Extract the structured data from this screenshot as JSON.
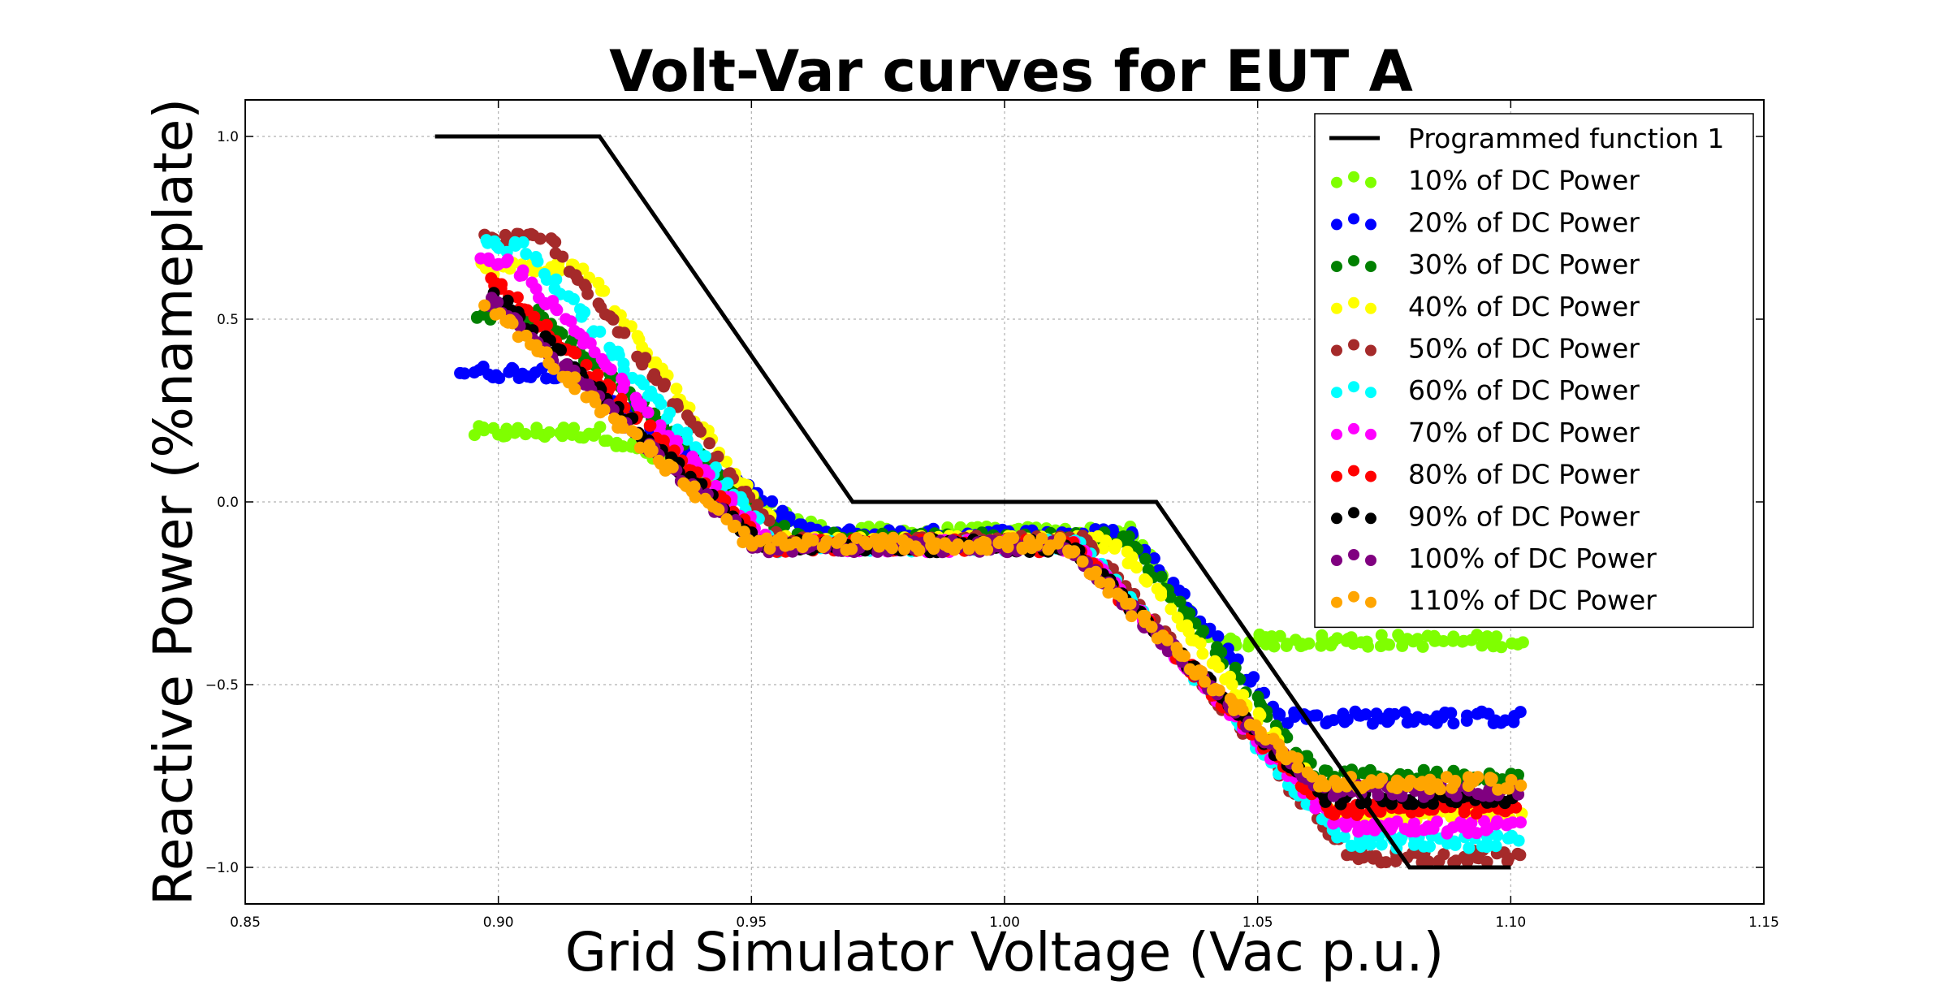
{
  "chart_data": {
    "type": "scatter",
    "title": "Volt-Var curves for EUT A",
    "xlabel": "Grid Simulator Voltage (Vac p.u.)",
    "ylabel": "Reactive Power (%nameplate)",
    "xlim": [
      0.85,
      1.15
    ],
    "ylim": [
      -1.1,
      1.1
    ],
    "xticks": [
      "0.85",
      "0.90",
      "0.95",
      "1.00",
      "1.05",
      "1.10",
      "1.15"
    ],
    "xtick_values": [
      0.85,
      0.9,
      0.95,
      1.0,
      1.05,
      1.1,
      1.15
    ],
    "yticks": [
      "1.0",
      "0.5",
      "0.0",
      "−0.5",
      "−1.0"
    ],
    "ytick_values": [
      1.0,
      0.5,
      0.0,
      -0.5,
      -1.0
    ],
    "grid": true,
    "legend_position": "top-right",
    "line_series": {
      "name": "Programmed function 1",
      "color": "#000000",
      "x": [
        0.8875,
        0.92,
        0.97,
        1.03,
        1.08,
        1.1
      ],
      "y": [
        1.0,
        1.0,
        0.0,
        0.0,
        -1.0,
        -1.0
      ]
    },
    "scatter_series": [
      {
        "name": "10% of DC Power",
        "color": "#7fff00",
        "q_cap": 0.19,
        "q_dead": -0.085,
        "q_abs": -0.38,
        "v_start": 0.895,
        "v_knee1": 0.92,
        "v_flat": 0.965,
        "v_knee2": 1.025,
        "v_floor": 1.04
      },
      {
        "name": "20% of DC Power",
        "color": "#0000ff",
        "q_cap": 0.355,
        "q_dead": -0.09,
        "q_abs": -0.59,
        "v_start": 0.893,
        "v_knee1": 0.915,
        "v_flat": 0.962,
        "v_knee2": 1.025,
        "v_floor": 1.055
      },
      {
        "name": "30% of DC Power",
        "color": "#008000",
        "q_cap": 0.51,
        "q_dead": -0.1,
        "q_abs": -0.75,
        "v_start": 0.895,
        "v_knee1": 0.908,
        "v_flat": 0.958,
        "v_knee2": 1.024,
        "v_floor": 1.062
      },
      {
        "name": "40% of DC Power",
        "color": "#ffff00",
        "q_cap": 0.64,
        "q_dead": -0.11,
        "q_abs": -0.86,
        "v_start": 0.896,
        "v_knee1": 0.917,
        "v_flat": 0.957,
        "v_knee2": 1.022,
        "v_floor": 1.066
      },
      {
        "name": "50% of DC Power",
        "color": "#a52a2a",
        "q_cap": 0.72,
        "q_dead": -0.11,
        "q_abs": -0.97,
        "v_start": 0.897,
        "v_knee1": 0.91,
        "v_flat": 0.956,
        "v_knee2": 1.016,
        "v_floor": 1.068
      },
      {
        "name": "60% of DC Power",
        "color": "#00ffff",
        "q_cap": 0.7,
        "q_dead": -0.12,
        "q_abs": -0.93,
        "v_start": 0.897,
        "v_knee1": 0.905,
        "v_flat": 0.955,
        "v_knee2": 1.015,
        "v_floor": 1.067
      },
      {
        "name": "70% of DC Power",
        "color": "#ff00ff",
        "q_cap": 0.65,
        "q_dead": -0.12,
        "q_abs": -0.89,
        "v_start": 0.897,
        "v_knee1": 0.903,
        "v_flat": 0.954,
        "v_knee2": 1.014,
        "v_floor": 1.066
      },
      {
        "name": "80% of DC Power",
        "color": "#ff0000",
        "q_cap": 0.6,
        "q_dead": -0.12,
        "q_abs": -0.84,
        "v_start": 0.898,
        "v_knee1": 0.9,
        "v_flat": 0.953,
        "v_knee2": 1.013,
        "v_floor": 1.064
      },
      {
        "name": "90% of DC Power",
        "color": "#000000",
        "q_cap": 0.56,
        "q_dead": -0.12,
        "q_abs": -0.81,
        "v_start": 0.899,
        "v_knee1": 0.9,
        "v_flat": 0.952,
        "v_knee2": 1.013,
        "v_floor": 1.063
      },
      {
        "name": "100% of DC Power",
        "color": "#800080",
        "q_cap": 0.55,
        "q_dead": -0.12,
        "q_abs": -0.79,
        "v_start": 0.898,
        "v_knee1": 0.899,
        "v_flat": 0.951,
        "v_knee2": 1.012,
        "v_floor": 1.062
      },
      {
        "name": "110% of DC Power",
        "color": "#ffa500",
        "q_cap": 0.53,
        "q_dead": -0.115,
        "q_abs": -0.77,
        "v_start": 0.898,
        "v_knee1": 0.899,
        "v_flat": 0.95,
        "v_knee2": 1.011,
        "v_floor": 1.062
      }
    ]
  }
}
